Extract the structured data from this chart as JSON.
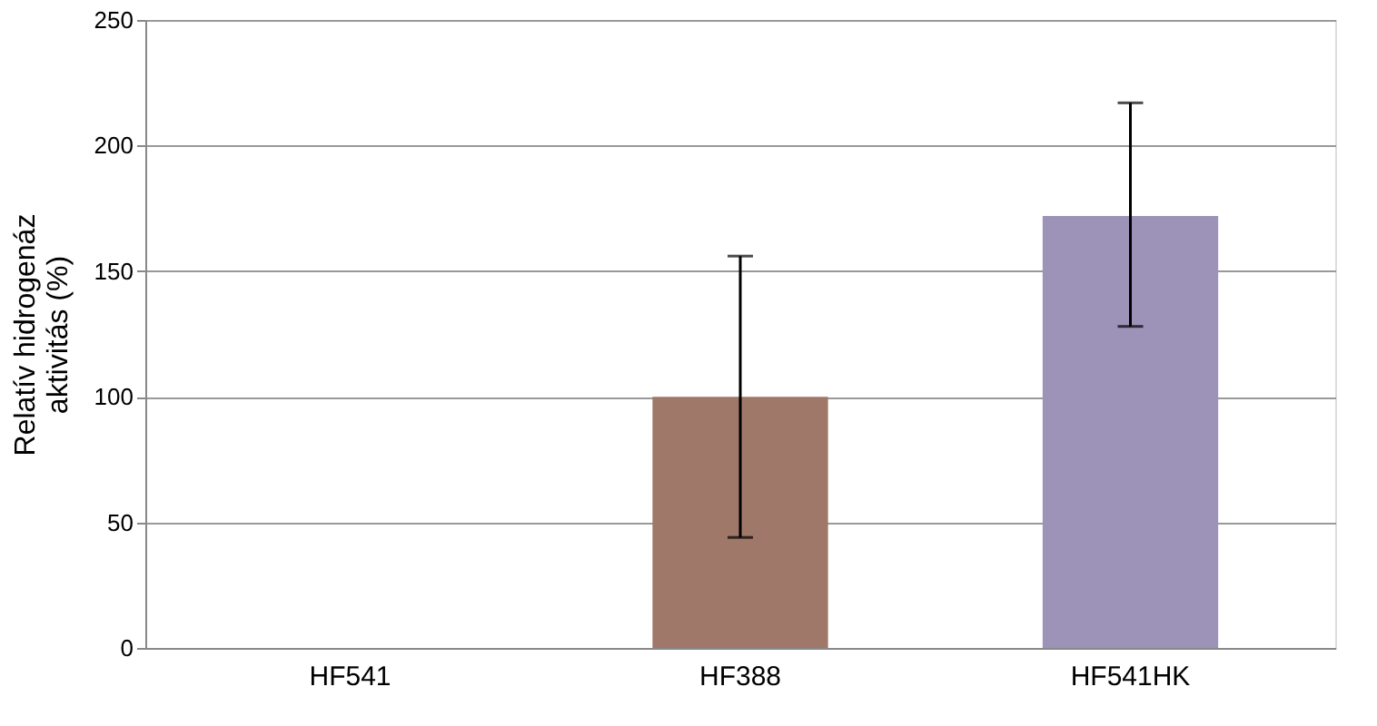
{
  "chart_data": {
    "type": "bar",
    "ylabel": "Relatív hidrogenáz aktivitás (%)",
    "categories": [
      "HF541",
      "HF388",
      "HF541HK"
    ],
    "values": [
      0,
      100,
      172
    ],
    "errors": [
      null,
      [
        44,
        156
      ],
      [
        128,
        217
      ]
    ],
    "colors": [
      "#808080",
      "#a0786a",
      "#9d92b8"
    ],
    "ylim": [
      0,
      250
    ],
    "yticks": [
      0,
      50,
      100,
      150,
      200,
      250
    ],
    "grid": "y"
  }
}
